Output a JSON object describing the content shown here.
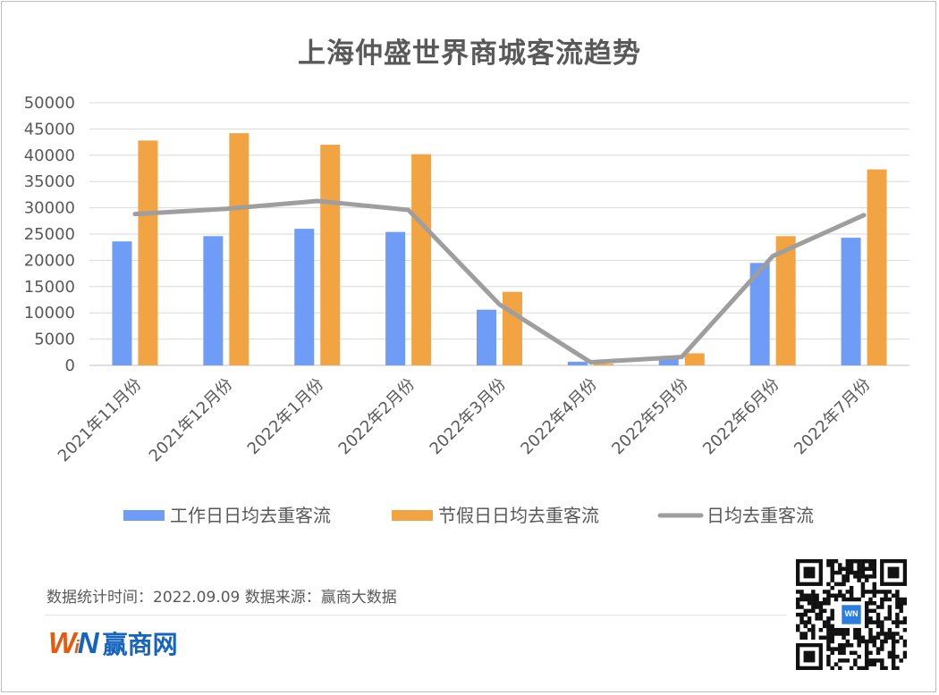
{
  "chart_data": {
    "type": "bar",
    "title": "上海仲盛世界商城客流趋势",
    "categories": [
      "2021年11月份",
      "2021年12月份",
      "2022年1月份",
      "2022年2月份",
      "2022年3月份",
      "2022年4月份",
      "2022年5月份",
      "2022年6月份",
      "2022年7月份"
    ],
    "series": [
      {
        "name": "工作日日均去重客流",
        "type": "bar",
        "color": "#6f9cf7",
        "values": [
          23600,
          24600,
          26000,
          25400,
          10600,
          700,
          1300,
          19500,
          24300
        ]
      },
      {
        "name": "节假日日均去重客流",
        "type": "bar",
        "color": "#f2a443",
        "values": [
          42800,
          44200,
          42000,
          40200,
          14000,
          300,
          2300,
          24600,
          37300
        ]
      },
      {
        "name": "日均去重客流",
        "type": "line",
        "color": "#9e9e9e",
        "values": [
          28800,
          29800,
          31300,
          29600,
          11600,
          600,
          1600,
          20800,
          28600
        ]
      }
    ],
    "ylim": [
      0,
      50000
    ],
    "yticks": [
      0,
      5000,
      10000,
      15000,
      20000,
      25000,
      30000,
      35000,
      40000,
      45000,
      50000
    ],
    "grid": true,
    "legend_position": "bottom"
  },
  "footer": {
    "note": "数据统计时间：2022.09.09  数据来源：赢商大数据",
    "logo_text": "赢商网",
    "logo_mark": "WiN"
  },
  "colors": {
    "title": "#595959",
    "axis_text": "#595959",
    "grid": "#d9d9d9",
    "brand_orange": "#e8590c",
    "brand_blue": "#1565c0"
  }
}
